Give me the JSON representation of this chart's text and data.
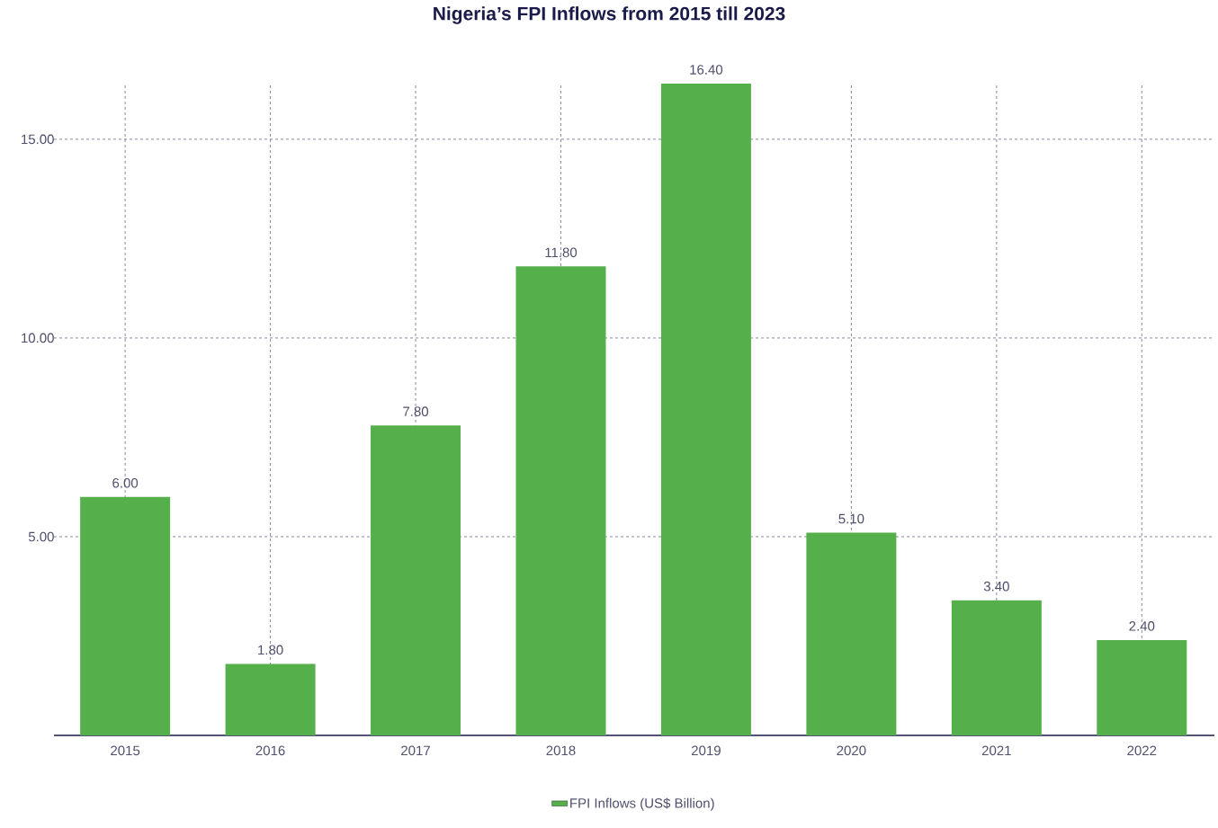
{
  "chart_data": {
    "type": "bar",
    "title": "Nigeria’s FPI Inflows from 2015 till 2023",
    "categories": [
      "2015",
      "2016",
      "2017",
      "2018",
      "2019",
      "2020",
      "2021",
      "2022"
    ],
    "series": [
      {
        "name": "FPI Inflows (US$ Billion)",
        "color": "#55b04b",
        "values": [
          6.0,
          1.8,
          7.8,
          11.8,
          16.4,
          5.1,
          3.4,
          2.4
        ],
        "value_labels": [
          "6.00",
          "1.80",
          "7.80",
          "11.80",
          "16.40",
          "5.10",
          "3.40",
          "2.40"
        ]
      }
    ],
    "ylim": [
      0,
      16.4
    ],
    "yticks": [
      {
        "value": 5,
        "label": "5.00"
      },
      {
        "value": 10,
        "label": "10.00"
      },
      {
        "value": 15,
        "label": "15.00"
      }
    ],
    "grid": true,
    "legend": "bottom"
  }
}
